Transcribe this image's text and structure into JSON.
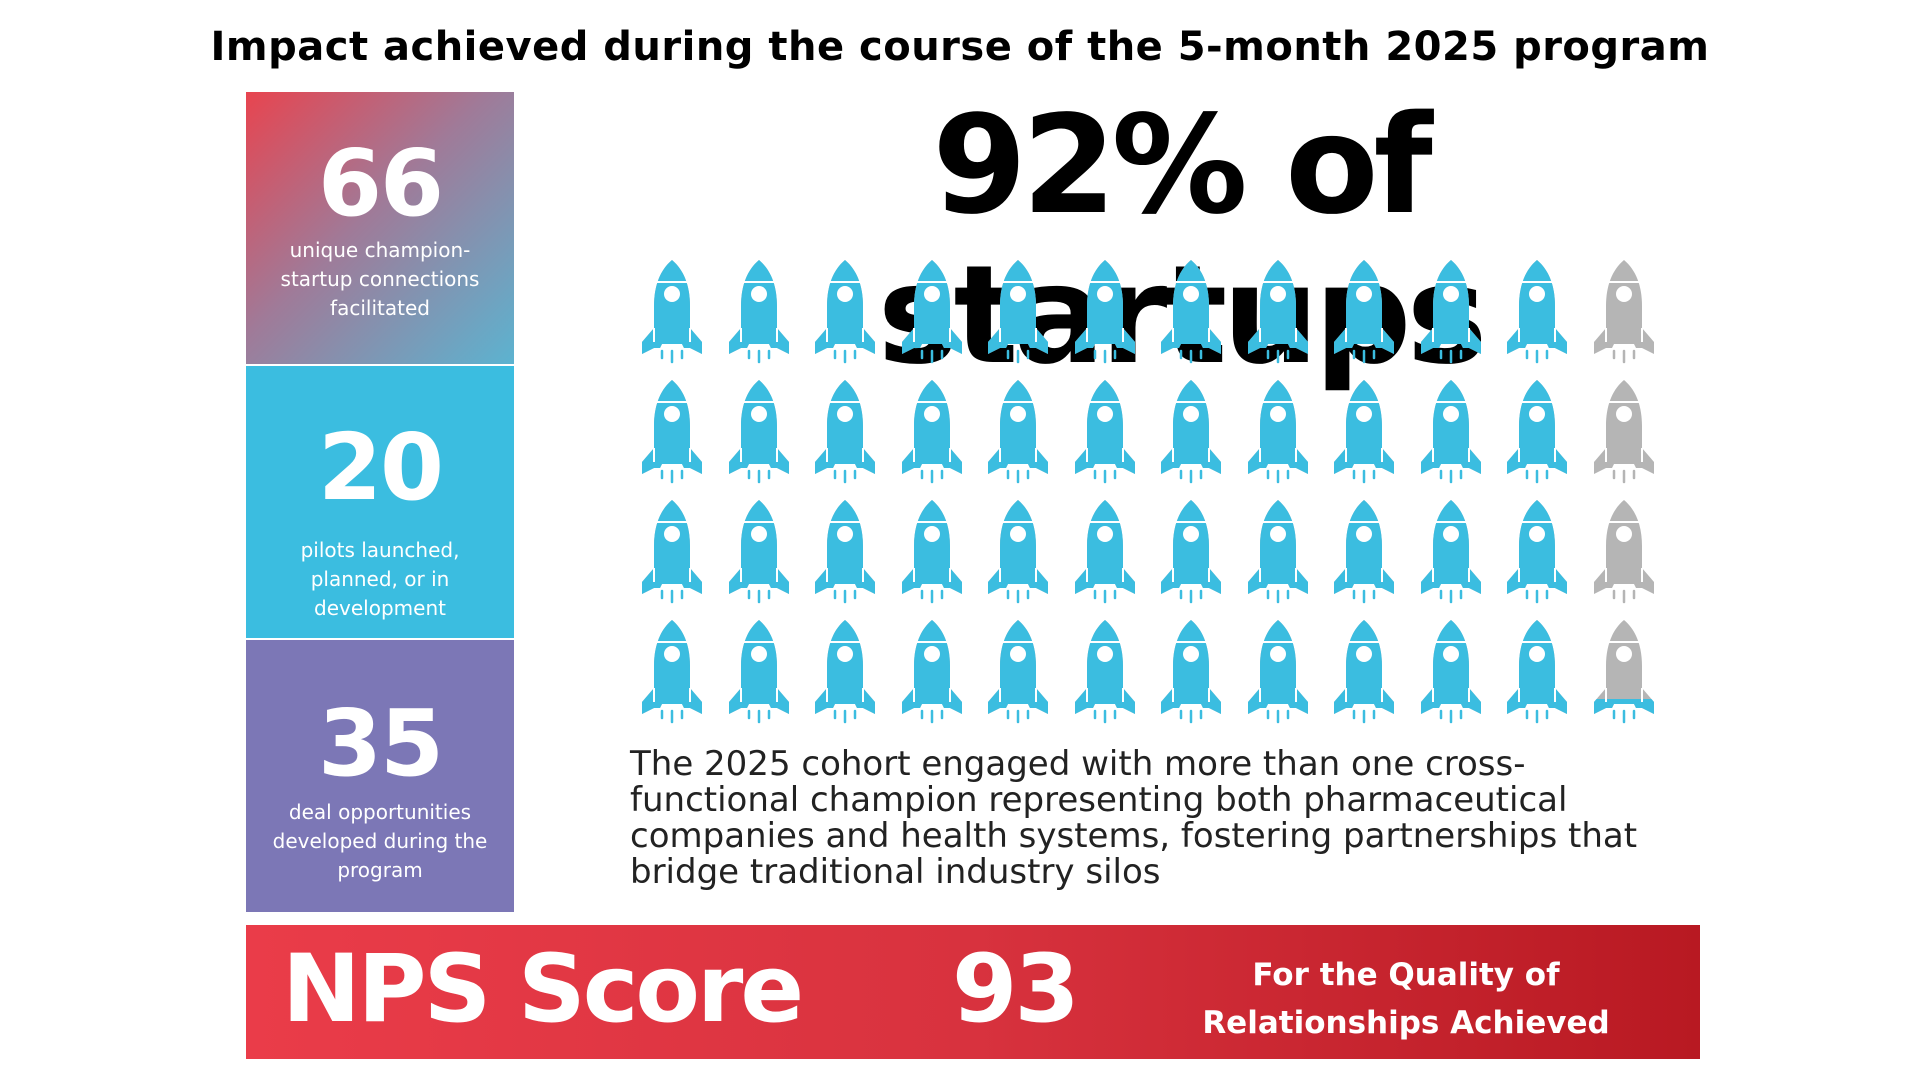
{
  "title": "Impact achieved during the course of the 5-month 2025 program",
  "stats": [
    {
      "value": "66",
      "label": "unique champion-startup connections facilitated"
    },
    {
      "value": "20",
      "label": "pilots launched, planned, or in development"
    },
    {
      "value": "35",
      "label": "deal opportunities developed during the program"
    }
  ],
  "headline": "92% of startups",
  "rocket_chart": {
    "rows": 4,
    "columns": 12,
    "total": 48,
    "highlighted_fraction": 0.92,
    "highlight_color": "#3bbde0",
    "base_color": "#b5b5b5",
    "icon": "rocket-icon"
  },
  "description": "The 2025 cohort engaged with more than one cross-functional champion representing both pharmaceutical companies and health systems, fostering partnerships that bridge traditional industry silos",
  "nps": {
    "label": "NPS Score",
    "value": "93",
    "caption": "For the Quality of Relationships Achieved"
  },
  "colors": {
    "accent_red": "#e23a46",
    "cyan": "#3bbde0",
    "purple": "#7c77b6"
  }
}
